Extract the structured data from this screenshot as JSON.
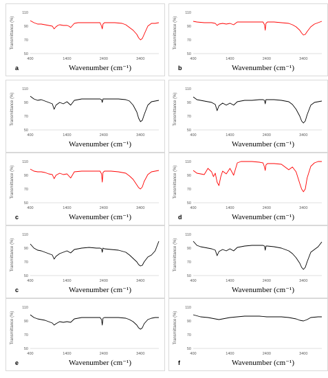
{
  "common": {
    "ylabel": "Transmittance (%)",
    "xlabel": "Wavenumber (cm⁻¹)",
    "xlim": [
      400,
      3900
    ],
    "ylim": [
      50,
      110
    ],
    "xticks": [
      400,
      1400,
      2400,
      3400
    ],
    "yticks": [
      50,
      70,
      90,
      110
    ],
    "colors": {
      "red": "#ff0000",
      "black": "#000000"
    }
  },
  "chart_data": [
    {
      "id": "p1",
      "type": "line",
      "label": "a",
      "color": "red",
      "ylabel": "Transmittance (%)",
      "xlabel": "Wavenumber (cm⁻¹)",
      "xlim": [
        400,
        3900
      ],
      "ylim": [
        50,
        110
      ],
      "xticks": [
        400,
        1400,
        2400,
        3400
      ],
      "yticks": [
        50,
        70,
        90,
        110
      ],
      "x": [
        400,
        500,
        600,
        700,
        800,
        900,
        1000,
        1050,
        1100,
        1150,
        1200,
        1300,
        1400,
        1450,
        1500,
        1600,
        1700,
        1800,
        2000,
        2200,
        2300,
        2340,
        2360,
        2380,
        2420,
        2500,
        2700,
        2900,
        3000,
        3100,
        3200,
        3300,
        3350,
        3400,
        3450,
        3500,
        3600,
        3700,
        3800,
        3900
      ],
      "y": [
        98,
        95,
        93,
        93,
        92,
        91,
        90,
        86,
        89,
        91,
        92,
        91,
        91,
        90,
        88,
        94,
        95,
        95,
        95,
        95,
        95,
        90,
        86,
        93,
        95,
        95,
        95,
        94,
        92,
        88,
        84,
        78,
        73,
        70,
        72,
        78,
        90,
        94,
        94,
        95
      ]
    },
    {
      "id": "p2",
      "type": "line",
      "label": "b",
      "color": "red",
      "ylabel": "Transmittance (%)",
      "xlabel": "Wavenumber (cm⁻¹)",
      "xlim": [
        400,
        3900
      ],
      "ylim": [
        50,
        110
      ],
      "xticks": [
        400,
        1400,
        2400,
        3400
      ],
      "yticks": [
        50,
        70,
        90,
        110
      ],
      "x": [
        400,
        500,
        700,
        900,
        1000,
        1050,
        1100,
        1200,
        1300,
        1400,
        1500,
        1600,
        1800,
        2000,
        2200,
        2300,
        2340,
        2360,
        2380,
        2420,
        2600,
        2800,
        3000,
        3100,
        3200,
        3300,
        3350,
        3400,
        3450,
        3500,
        3600,
        3700,
        3800,
        3900
      ],
      "y": [
        97,
        96,
        95,
        95,
        94,
        91,
        93,
        94,
        93,
        94,
        92,
        96,
        96,
        96,
        96,
        96,
        92,
        84,
        94,
        96,
        96,
        95,
        94,
        92,
        89,
        84,
        80,
        77,
        78,
        82,
        89,
        93,
        95,
        97
      ]
    },
    {
      "id": "p3",
      "type": "line",
      "label": "",
      "color": "black",
      "ylabel": "Transmittance (%)",
      "xlabel": "Wavenumber (cm⁻¹)",
      "xlim": [
        400,
        3900
      ],
      "ylim": [
        50,
        110
      ],
      "xticks": [
        400,
        1400,
        2400,
        3400
      ],
      "yticks": [
        50,
        70,
        90,
        110
      ],
      "x": [
        400,
        500,
        600,
        700,
        800,
        900,
        1000,
        1050,
        1100,
        1200,
        1300,
        1400,
        1500,
        1600,
        1800,
        2000,
        2200,
        2300,
        2340,
        2360,
        2380,
        2420,
        2600,
        2800,
        3000,
        3100,
        3200,
        3300,
        3350,
        3400,
        3450,
        3500,
        3600,
        3700,
        3800,
        3900
      ],
      "y": [
        99,
        95,
        93,
        94,
        92,
        90,
        88,
        80,
        86,
        90,
        88,
        91,
        86,
        93,
        95,
        95,
        95,
        95,
        94,
        90,
        95,
        95,
        95,
        95,
        94,
        92,
        86,
        76,
        67,
        62,
        64,
        72,
        86,
        91,
        92,
        93
      ]
    },
    {
      "id": "p4",
      "type": "line",
      "label": "",
      "color": "black",
      "ylabel": "Transmittance (%)",
      "xlabel": "Wavenumber (cm⁻¹)",
      "xlim": [
        400,
        3900
      ],
      "ylim": [
        50,
        110
      ],
      "xticks": [
        400,
        1400,
        2400,
        3400
      ],
      "yticks": [
        50,
        70,
        90,
        110
      ],
      "x": [
        400,
        500,
        600,
        700,
        800,
        900,
        1000,
        1050,
        1100,
        1200,
        1300,
        1400,
        1500,
        1600,
        1800,
        2000,
        2200,
        2300,
        2340,
        2360,
        2380,
        2420,
        2600,
        2800,
        3000,
        3100,
        3200,
        3300,
        3350,
        3400,
        3450,
        3500,
        3600,
        3700,
        3800,
        3900
      ],
      "y": [
        98,
        94,
        93,
        92,
        91,
        90,
        87,
        78,
        85,
        89,
        86,
        89,
        86,
        91,
        93,
        93,
        94,
        94,
        93,
        88,
        94,
        94,
        94,
        93,
        91,
        87,
        80,
        70,
        63,
        60,
        63,
        72,
        86,
        90,
        91,
        92
      ]
    },
    {
      "id": "p5",
      "type": "line",
      "label": "c",
      "color": "red",
      "ylabel": "Transmittance (%)",
      "xlabel": "Wavenumber (cm⁻¹)",
      "xlim": [
        400,
        3900
      ],
      "ylim": [
        50,
        110
      ],
      "xticks": [
        400,
        1400,
        2400,
        3400
      ],
      "yticks": [
        50,
        70,
        90,
        110
      ],
      "x": [
        400,
        500,
        600,
        700,
        800,
        900,
        1000,
        1050,
        1100,
        1200,
        1300,
        1400,
        1500,
        1600,
        1800,
        2000,
        2200,
        2300,
        2340,
        2360,
        2380,
        2420,
        2600,
        2800,
        3000,
        3100,
        3200,
        3300,
        3350,
        3400,
        3450,
        3500,
        3600,
        3700,
        3800,
        3900
      ],
      "y": [
        99,
        96,
        95,
        95,
        94,
        92,
        91,
        85,
        90,
        93,
        91,
        92,
        86,
        95,
        96,
        96,
        96,
        96,
        92,
        80,
        94,
        96,
        96,
        95,
        93,
        89,
        84,
        76,
        72,
        70,
        73,
        81,
        91,
        95,
        96,
        97
      ]
    },
    {
      "id": "p6",
      "type": "line",
      "label": "d",
      "color": "red",
      "ylabel": "Transmittance (%)",
      "xlabel": "Wavenumber (cm⁻¹)",
      "xlim": [
        400,
        3900
      ],
      "ylim": [
        50,
        110
      ],
      "xticks": [
        400,
        1400,
        2400,
        3400
      ],
      "yticks": [
        50,
        70,
        90,
        110
      ],
      "x": [
        400,
        500,
        600,
        700,
        800,
        900,
        950,
        1000,
        1050,
        1100,
        1150,
        1200,
        1300,
        1400,
        1500,
        1600,
        1700,
        1800,
        2000,
        2200,
        2300,
        2340,
        2360,
        2380,
        2420,
        2600,
        2800,
        2900,
        3000,
        3100,
        3200,
        3300,
        3350,
        3400,
        3450,
        3500,
        3600,
        3700,
        3800,
        3900
      ],
      "y": [
        97,
        93,
        92,
        91,
        100,
        95,
        88,
        93,
        80,
        75,
        88,
        96,
        92,
        100,
        90,
        108,
        110,
        110,
        110,
        109,
        108,
        102,
        97,
        105,
        107,
        107,
        106,
        102,
        98,
        102,
        95,
        78,
        70,
        66,
        70,
        86,
        103,
        108,
        110,
        111
      ]
    },
    {
      "id": "p7",
      "type": "line",
      "label": "c",
      "color": "black",
      "ylabel": "Transmittance (%)",
      "xlabel": "Wavenumber (cm⁻¹)",
      "xlim": [
        400,
        3900
      ],
      "ylim": [
        50,
        110
      ],
      "xticks": [
        400,
        1400,
        2400,
        3400
      ],
      "yticks": [
        50,
        70,
        90,
        110
      ],
      "x": [
        400,
        500,
        600,
        700,
        800,
        900,
        1000,
        1050,
        1100,
        1200,
        1300,
        1400,
        1500,
        1600,
        1800,
        2000,
        2200,
        2300,
        2340,
        2360,
        2380,
        2420,
        2600,
        2800,
        3000,
        3100,
        3200,
        3300,
        3350,
        3400,
        3450,
        3500,
        3600,
        3700,
        3800,
        3900
      ],
      "y": [
        96,
        90,
        87,
        86,
        84,
        82,
        80,
        74,
        78,
        82,
        84,
        86,
        83,
        88,
        90,
        91,
        90,
        90,
        89,
        84,
        90,
        89,
        88,
        87,
        84,
        80,
        75,
        70,
        66,
        64,
        65,
        70,
        77,
        80,
        86,
        100
      ]
    },
    {
      "id": "p8",
      "type": "line",
      "label": "",
      "color": "black",
      "ylabel": "Transmittance (%)",
      "xlabel": "Wavenumber (cm⁻¹)",
      "xlim": [
        400,
        3900
      ],
      "ylim": [
        50,
        110
      ],
      "xticks": [
        400,
        1400,
        2400,
        3400
      ],
      "yticks": [
        50,
        70,
        90,
        110
      ],
      "x": [
        400,
        500,
        600,
        700,
        800,
        900,
        1000,
        1050,
        1100,
        1200,
        1300,
        1400,
        1500,
        1600,
        1800,
        2000,
        2200,
        2300,
        2340,
        2360,
        2380,
        2420,
        2600,
        2800,
        3000,
        3100,
        3200,
        3300,
        3350,
        3400,
        3450,
        3500,
        3600,
        3700,
        3800,
        3900
      ],
      "y": [
        100,
        94,
        92,
        91,
        90,
        89,
        87,
        79,
        85,
        88,
        86,
        89,
        86,
        91,
        93,
        94,
        94,
        94,
        93,
        87,
        93,
        93,
        92,
        90,
        86,
        82,
        76,
        68,
        62,
        59,
        62,
        70,
        84,
        88,
        92,
        99
      ]
    },
    {
      "id": "p9",
      "type": "line",
      "label": "e",
      "color": "black",
      "ylabel": "Transmittance (%)",
      "xlabel": "Wavenumber (cm⁻¹)",
      "xlim": [
        400,
        3900
      ],
      "ylim": [
        50,
        110
      ],
      "xticks": [
        400,
        1400,
        2400,
        3400
      ],
      "yticks": [
        50,
        70,
        90,
        110
      ],
      "x": [
        400,
        500,
        600,
        700,
        800,
        900,
        1000,
        1050,
        1100,
        1200,
        1300,
        1400,
        1500,
        1600,
        1800,
        2000,
        2200,
        2300,
        2340,
        2360,
        2380,
        2420,
        2600,
        2800,
        3000,
        3100,
        3200,
        3300,
        3350,
        3400,
        3450,
        3500,
        3600,
        3700,
        3800,
        3900
      ],
      "y": [
        99,
        95,
        93,
        92,
        91,
        89,
        87,
        84,
        86,
        89,
        88,
        89,
        88,
        93,
        95,
        95,
        95,
        95,
        92,
        84,
        94,
        95,
        95,
        95,
        94,
        92,
        89,
        84,
        80,
        78,
        80,
        86,
        92,
        94,
        95,
        95
      ]
    },
    {
      "id": "p10",
      "type": "line",
      "label": "f",
      "color": "black",
      "ylabel": "Transmittance (%)",
      "xlabel": "Wavenumber (cm⁻¹)",
      "xlim": [
        400,
        3900
      ],
      "ylim": [
        50,
        110
      ],
      "xticks": [
        400,
        1400,
        2400,
        3400
      ],
      "yticks": [
        50,
        70,
        90,
        110
      ],
      "x": [
        400,
        600,
        800,
        1000,
        1100,
        1200,
        1400,
        1600,
        1800,
        2000,
        2200,
        2400,
        2600,
        2800,
        3000,
        3200,
        3300,
        3400,
        3500,
        3600,
        3800,
        3900
      ],
      "y": [
        99,
        96,
        95,
        93,
        92,
        93,
        95,
        96,
        97,
        97,
        97,
        96,
        96,
        96,
        95,
        93,
        91,
        90,
        92,
        95,
        96,
        96
      ]
    }
  ]
}
